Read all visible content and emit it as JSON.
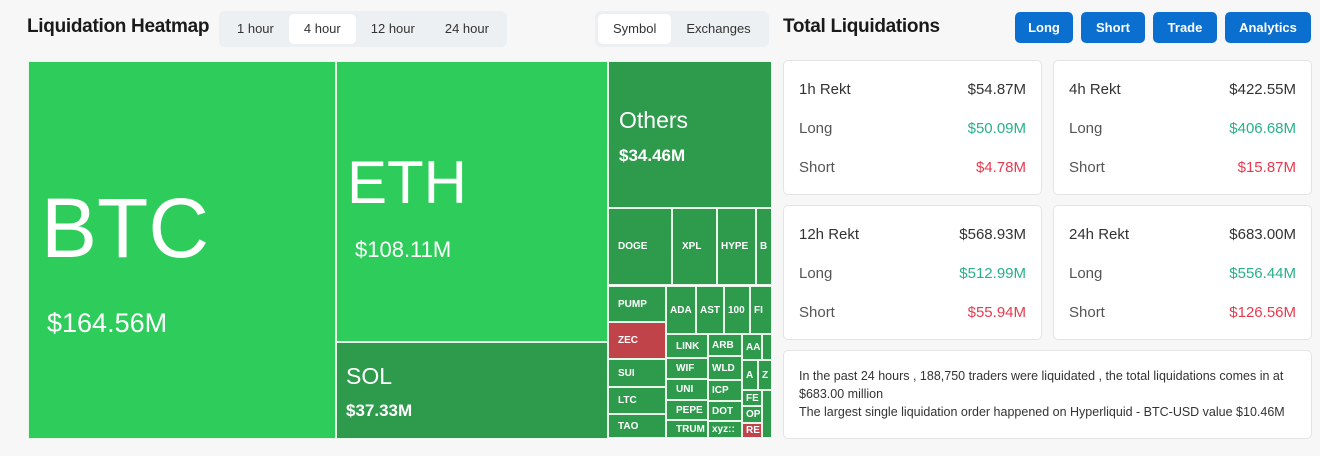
{
  "heatmap": {
    "title": "Liquidation Heatmap",
    "time_tabs": [
      "1 hour",
      "4 hour",
      "12 hour",
      "24 hour"
    ],
    "active_time": "4 hour",
    "view_tabs": [
      "Symbol",
      "Exchanges"
    ],
    "active_view": "Symbol",
    "main": [
      {
        "symbol": "BTC",
        "value": "$164.56M"
      },
      {
        "symbol": "ETH",
        "value": "$108.11M"
      },
      {
        "symbol": "SOL",
        "value": "$37.33M"
      },
      {
        "symbol": "Others",
        "value": "$34.46M"
      }
    ],
    "small": [
      {
        "s": "DOGE",
        "c": "green"
      },
      {
        "s": "XPL",
        "c": "green"
      },
      {
        "s": "HYPE",
        "c": "green"
      },
      {
        "s": "B",
        "c": "green"
      },
      {
        "s": "PUMP",
        "c": "green"
      },
      {
        "s": "ZEC",
        "c": "red"
      },
      {
        "s": "SUI",
        "c": "green"
      },
      {
        "s": "LTC",
        "c": "green"
      },
      {
        "s": "TAO",
        "c": "green"
      },
      {
        "s": "ADA",
        "c": "green"
      },
      {
        "s": "AST",
        "c": "green"
      },
      {
        "s": "100",
        "c": "green"
      },
      {
        "s": "FI",
        "c": "green"
      },
      {
        "s": "LINK",
        "c": "green"
      },
      {
        "s": "WIF",
        "c": "green"
      },
      {
        "s": "UNI",
        "c": "green"
      },
      {
        "s": "PEPE",
        "c": "green"
      },
      {
        "s": "TRUM",
        "c": "green"
      },
      {
        "s": "ARB",
        "c": "green"
      },
      {
        "s": "WLD",
        "c": "green"
      },
      {
        "s": "ICP",
        "c": "green"
      },
      {
        "s": "DOT",
        "c": "green"
      },
      {
        "s": "xyz::",
        "c": "green"
      },
      {
        "s": "AA",
        "c": "green"
      },
      {
        "s": "",
        "c": "green"
      },
      {
        "s": "A",
        "c": "green"
      },
      {
        "s": "Z",
        "c": "green"
      },
      {
        "s": "FE",
        "c": "green"
      },
      {
        "s": "OP",
        "c": "green"
      },
      {
        "s": "RE",
        "c": "red"
      },
      {
        "s": "",
        "c": "green"
      }
    ]
  },
  "totals": {
    "title": "Total Liquidations",
    "buttons": [
      "Long",
      "Short",
      "Trade",
      "Analytics"
    ],
    "cards": [
      {
        "label": "1h Rekt",
        "total": "$54.87M",
        "long_label": "Long",
        "long": "$50.09M",
        "short_label": "Short",
        "short": "$4.78M"
      },
      {
        "label": "4h Rekt",
        "total": "$422.55M",
        "long_label": "Long",
        "long": "$406.68M",
        "short_label": "Short",
        "short": "$15.87M"
      },
      {
        "label": "12h Rekt",
        "total": "$568.93M",
        "long_label": "Long",
        "long": "$512.99M",
        "short_label": "Short",
        "short": "$55.94M"
      },
      {
        "label": "24h Rekt",
        "total": "$683.00M",
        "long_label": "Long",
        "long": "$556.44M",
        "short_label": "Short",
        "short": "$126.56M"
      }
    ],
    "summary_line1": "In the past 24 hours , 188,750 traders were liquidated , the total liquidations comes in at $683.00 million",
    "summary_line2": "The largest single liquidation order happened on Hyperliquid - BTC-USD value $10.46M"
  },
  "colors": {
    "green_big": "#2ecc5a",
    "green_small": "#2e9a4c",
    "red": "#c0434a",
    "accent": "#0b6fd0"
  }
}
